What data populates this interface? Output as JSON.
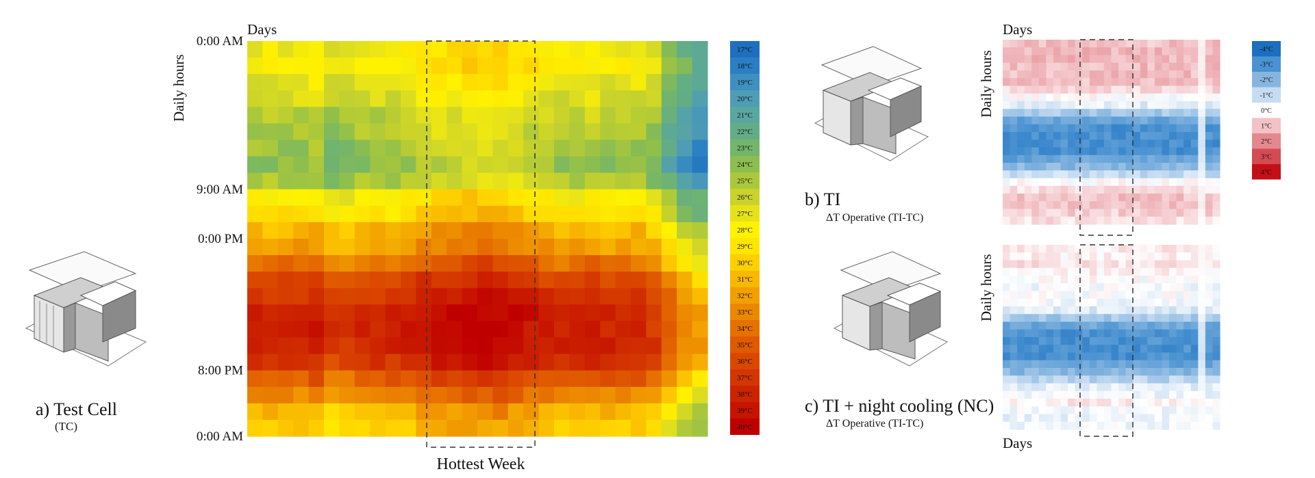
{
  "panel_a": {
    "label": "a) Test Cell",
    "sublabel": "(TC)"
  },
  "panel_b": {
    "label": "b) TI",
    "sublabel": "ΔT Operative (TI-TC)"
  },
  "panel_c": {
    "label": "c) TI + night cooling (NC)",
    "sublabel": "ΔT Operative (TI-TC)"
  },
  "chart_data": [
    {
      "type": "heatmap",
      "id": "tc-operative-temperature",
      "xlabel": "Days",
      "ylabel": "Daily hours",
      "ytick_labels": [
        "0:00 AM",
        "9:00 AM",
        "0:00 PM",
        "8:00 PM",
        "0:00 AM"
      ],
      "ytick_hours": [
        0,
        9,
        12,
        20,
        24
      ],
      "days": 30,
      "hours": 24,
      "hottest_week_label": "Hottest Week",
      "hottest_week_days": [
        13,
        19
      ],
      "hourly_profile_degC": [
        27.5,
        28,
        27,
        26.5,
        25.5,
        25,
        24.5,
        24,
        25,
        28,
        29,
        31,
        32,
        34,
        36,
        37,
        38,
        38,
        38,
        37,
        35,
        33,
        31,
        30
      ],
      "day_offset_degC": [
        0,
        0,
        0,
        0,
        0.5,
        -1,
        -1,
        0,
        0,
        0,
        0.5,
        1,
        1.5,
        1.5,
        2,
        2,
        2,
        1.5,
        1,
        0.5,
        0,
        0,
        0.5,
        0,
        0,
        0,
        -1,
        -3,
        -5,
        -6
      ],
      "legend": {
        "labels": [
          "17°C",
          "18°C",
          "19°C",
          "20°C",
          "21°C",
          "22°C",
          "23°C",
          "24°C",
          "25°C",
          "26°C",
          "27°C",
          "28°C",
          "29°C",
          "30°C",
          "31°C",
          "32°C",
          "33°C",
          "34°C",
          "35°C",
          "36°C",
          "37°C",
          "38°C",
          "39°C",
          "40°C"
        ],
        "colors": [
          "#1f6fbf",
          "#2a7fc2",
          "#3d90c0",
          "#4e9db5",
          "#5aa6a0",
          "#63ad86",
          "#73b56a",
          "#8cbe4f",
          "#aac83b",
          "#c9d32b",
          "#e6e21a",
          "#fff200",
          "#ffe600",
          "#ffd000",
          "#f8b800",
          "#f2a000",
          "#ec8800",
          "#e67000",
          "#e05a00",
          "#da4800",
          "#d43600",
          "#cd2400",
          "#c71400",
          "#c00000"
        ]
      }
    },
    {
      "type": "heatmap",
      "id": "ti-delta-temperature",
      "xlabel": "Days",
      "ylabel": "Daily hours",
      "days": 30,
      "hours": 24,
      "hottest_week_days": [
        11,
        18
      ],
      "hourly_delta_degC": [
        1,
        1.2,
        1.2,
        1.1,
        1.1,
        1,
        0.6,
        0,
        -0.5,
        -1.5,
        -2.5,
        -3,
        -3,
        -3,
        -3,
        -2.5,
        -2,
        -1,
        0,
        0.5,
        1,
        1,
        0.8,
        0.5
      ],
      "legend": {
        "labels": [
          "-4°C",
          "-3°C",
          "-2°C",
          "-1°C",
          "0°C",
          "1°C",
          "2°C",
          "3°C",
          "4°C"
        ],
        "colors": [
          "#1a6fc0",
          "#4a92d1",
          "#86b6e0",
          "#c6dcf1",
          "#ffffff",
          "#f2c2c6",
          "#e4888f",
          "#d44b52",
          "#c40f16"
        ]
      }
    },
    {
      "type": "heatmap",
      "id": "ti-nc-delta-temperature",
      "xlabel": "Days",
      "ylabel": "Daily hours",
      "days": 30,
      "hours": 24,
      "hottest_week_days": [
        11,
        18
      ],
      "hourly_delta_degC": [
        0.3,
        0.2,
        0.5,
        0.2,
        0,
        -0.2,
        -0.1,
        -0.2,
        -0.6,
        -1.5,
        -2.5,
        -3,
        -3,
        -3,
        -3,
        -2.5,
        -2,
        -1.2,
        -0.5,
        -0.3,
        0.3,
        -0.2,
        -0.3,
        -0.2
      ]
    }
  ]
}
